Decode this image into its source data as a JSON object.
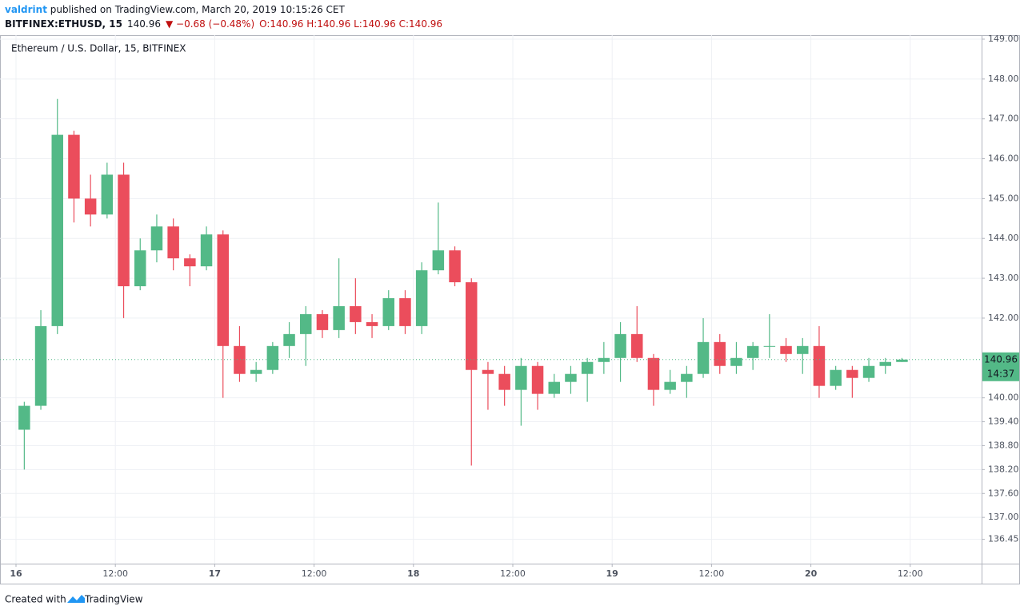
{
  "header": {
    "author": "valdrint",
    "published": " published on TradingView.com, March 20, 2019 10:15:26 CET",
    "symbol": "BITFINEX:ETHUSD, 15",
    "price": "140.96",
    "change": "▼ −0.68 (−0.48%)",
    "ohlc": "O:140.96 H:140.96 L:140.96 C:140.96"
  },
  "footer": {
    "created": "Created with",
    "brand": "TradingView"
  },
  "chart_data": {
    "type": "candlestick",
    "title": "Ethereum / U.S. Dollar, 15, BITFINEX",
    "categories": [
      "16",
      null,
      null,
      null,
      null,
      null,
      "12:00",
      null,
      null,
      null,
      null,
      null,
      "17",
      null,
      null,
      null,
      null,
      null,
      "12:00",
      null,
      null,
      null,
      null,
      null,
      "18",
      null,
      null,
      null,
      null,
      null,
      "12:00",
      null,
      null,
      null,
      null,
      null,
      "19",
      null,
      null,
      null,
      null,
      null,
      "12:00",
      null,
      null,
      null,
      null,
      null,
      "20",
      null,
      null,
      null,
      null,
      null,
      "12:00"
    ],
    "open": [
      139.2,
      139.8,
      141.8,
      146.6,
      145.0,
      144.6,
      145.6,
      142.8,
      143.7,
      144.3,
      143.5,
      143.3,
      144.1,
      141.3,
      140.6,
      140.7,
      141.3,
      141.6,
      142.1,
      141.7,
      142.3,
      141.9,
      141.8,
      142.5,
      141.8,
      143.2,
      143.7,
      142.9,
      140.7,
      140.6,
      140.2,
      140.8,
      140.1,
      140.4,
      140.6,
      140.9,
      141.0,
      141.6,
      141.0,
      140.2,
      140.4,
      140.6,
      141.4,
      140.8,
      141.0,
      141.3,
      141.3,
      141.1,
      141.3,
      140.3,
      140.7,
      140.5,
      140.8,
      140.9,
      null
    ],
    "high": [
      139.9,
      142.2,
      147.5,
      146.7,
      145.6,
      145.9,
      145.9,
      144.0,
      144.6,
      144.5,
      143.6,
      144.3,
      144.2,
      141.8,
      140.9,
      141.4,
      141.9,
      142.3,
      142.2,
      143.5,
      143.0,
      142.1,
      142.7,
      142.7,
      143.4,
      144.9,
      143.8,
      143.0,
      140.9,
      140.8,
      141.0,
      140.9,
      140.6,
      140.8,
      141.0,
      141.4,
      141.9,
      142.3,
      141.1,
      140.7,
      140.8,
      142.0,
      141.6,
      141.4,
      141.4,
      142.1,
      141.5,
      141.5,
      141.8,
      140.8,
      140.8,
      141.0,
      141.0,
      141.0,
      null
    ],
    "low": [
      138.2,
      139.7,
      141.6,
      144.4,
      144.3,
      144.5,
      142.0,
      142.7,
      143.4,
      143.2,
      142.8,
      143.2,
      140.0,
      140.4,
      140.4,
      140.6,
      141.0,
      140.8,
      141.5,
      141.5,
      141.6,
      141.5,
      141.7,
      141.6,
      141.6,
      143.1,
      142.8,
      138.3,
      139.7,
      139.8,
      139.3,
      139.7,
      140.0,
      140.1,
      139.9,
      140.6,
      140.4,
      140.9,
      139.8,
      140.1,
      140.0,
      140.5,
      140.6,
      140.6,
      140.7,
      141.0,
      140.9,
      140.6,
      140.0,
      140.2,
      140.0,
      140.4,
      140.6,
      140.9,
      null
    ],
    "close": [
      139.8,
      141.8,
      146.6,
      145.0,
      144.6,
      145.6,
      142.8,
      143.7,
      144.3,
      143.5,
      143.3,
      144.1,
      141.3,
      140.6,
      140.7,
      141.3,
      141.6,
      142.1,
      141.7,
      142.3,
      141.9,
      141.8,
      142.5,
      141.8,
      143.2,
      143.7,
      142.9,
      140.7,
      140.6,
      140.2,
      140.8,
      140.1,
      140.4,
      140.6,
      140.9,
      141.0,
      141.6,
      141.0,
      140.2,
      140.4,
      140.6,
      141.4,
      140.8,
      141.0,
      141.3,
      141.3,
      141.1,
      141.3,
      140.3,
      140.7,
      140.5,
      140.8,
      140.9,
      140.96,
      null
    ],
    "up_color": "#53b987",
    "down_color": "#eb4d5c",
    "ylim": [
      135.84,
      149.1
    ],
    "yticks": [
      {
        "value": 149,
        "label": "149.00"
      },
      {
        "value": 148,
        "label": "148.00"
      },
      {
        "value": 147,
        "label": "147.00"
      },
      {
        "value": 146,
        "label": "146.00"
      },
      {
        "value": 145,
        "label": "145.00"
      },
      {
        "value": 144,
        "label": "144.00"
      },
      {
        "value": 143,
        "label": "143.00"
      },
      {
        "value": 142,
        "label": "142.00"
      },
      {
        "value": 140,
        "label": "140.00"
      },
      {
        "value": 139.4,
        "label": "139.40"
      },
      {
        "value": 138.8,
        "label": "138.80"
      },
      {
        "value": 138.2,
        "label": "138.20"
      },
      {
        "value": 137.6,
        "label": "137.60"
      },
      {
        "value": 137,
        "label": "137.00"
      },
      136.45
    ],
    "grid": true,
    "last_price": 140.96,
    "countdown": "14:37"
  }
}
